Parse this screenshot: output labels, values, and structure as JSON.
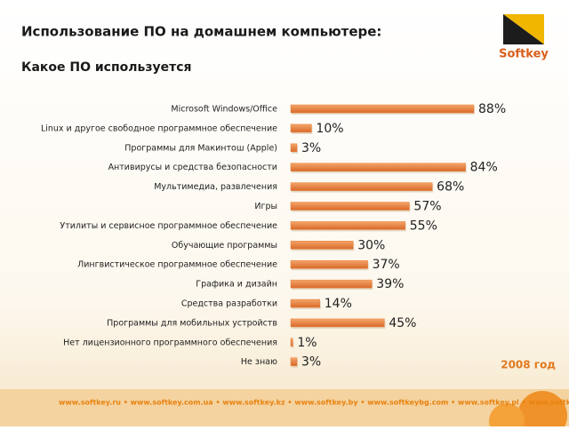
{
  "chart_data": {
    "type": "bar",
    "orientation": "horizontal",
    "title": "Использование ПО на домашнем компьютере:",
    "subtitle": "Какое ПО используется",
    "categories": [
      "Microsoft Windows/Office",
      "Linux и другое свободное программное обеспечение",
      "Программы для Макинтош (Apple)",
      "Антивирусы и средства безопасности",
      "Мультимедиа, развлечения",
      "Игры",
      "Утилиты и сервисное программное обеспечение",
      "Обучающие программы",
      "Лингвистическое программное обеспечение",
      "Графика и дизайн",
      "Средства разработки",
      "Программы для мобильных устройств",
      "Нет лицензионного программного обеспечения",
      "Не знаю"
    ],
    "values": [
      88,
      10,
      3,
      84,
      68,
      57,
      55,
      30,
      37,
      39,
      14,
      45,
      1,
      3
    ],
    "value_labels": [
      "88%",
      "10%",
      "3%",
      "84%",
      "68%",
      "57%",
      "55%",
      "30%",
      "37%",
      "39%",
      "14%",
      "45%",
      "1%",
      "3%"
    ],
    "color": "#e9823a",
    "annotation": "2008 год",
    "logo": "Softkey",
    "footer": "www.softkey.ru • www.softkey.com.ua • www.softkey.kz • www.softkey.by • www.softkeybg.com • www.softkey.pl • www.softkey.ee"
  }
}
